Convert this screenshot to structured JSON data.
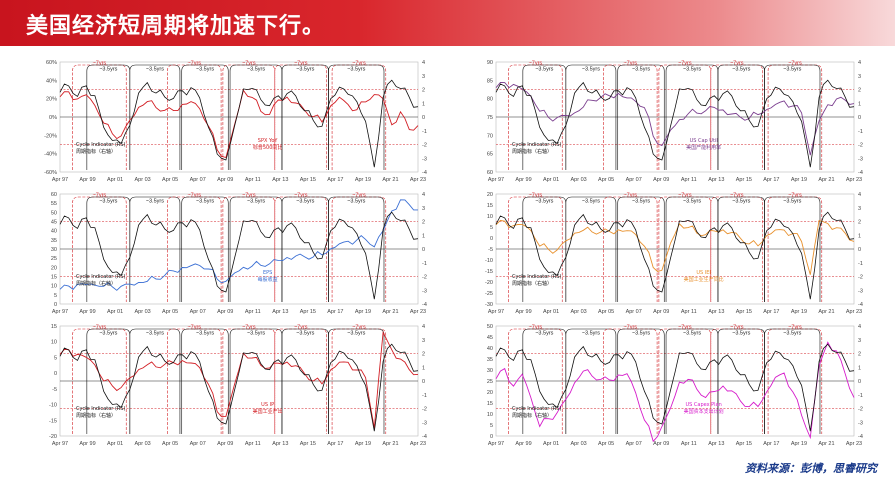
{
  "header": {
    "title": "美国经济短周期将加速下行。"
  },
  "footer": {
    "source": "资料来源：彭博，思睿研究"
  },
  "colors": {
    "cycle_line": "#111111",
    "cycle_band": "#d21e24",
    "bracket_black": "#111111",
    "bracket_red": "#d21e24"
  },
  "period_labels": {
    "black": "~3.5yrs",
    "red": "~7yrs"
  },
  "cycle_indicator": {
    "label_en": "Cycle Indicator (RS)",
    "label_cn": "周期指标（右轴）"
  },
  "chart_data": [
    {
      "type": "line",
      "panel": "top-left",
      "x_ticks": [
        "Apr 97",
        "Apr 99",
        "Apr 01",
        "Apr 03",
        "Apr 05",
        "Apr 07",
        "Apr 09",
        "Apr 11",
        "Apr 13",
        "Apr 15",
        "Apr 17",
        "Apr 19",
        "Apr 21",
        "Apr 23"
      ],
      "y_left_ticks": [
        "60%",
        "40%",
        "20%",
        "0%",
        "-20%",
        "-40%",
        "-60%"
      ],
      "y_left_range": [
        -60,
        60
      ],
      "y_right_ticks": [
        "4",
        "3",
        "2",
        "1",
        "0",
        "-1",
        "-2",
        "-3",
        "-4"
      ],
      "y_right_range": [
        -4,
        4
      ],
      "series": [
        {
          "name": "SPX YoY",
          "name_cn": "标普500同比",
          "color": "#d21e24",
          "axis": "left",
          "values": [
            22,
            26,
            18,
            24,
            14,
            -5,
            -18,
            -22,
            -5,
            10,
            18,
            12,
            8,
            6,
            12,
            16,
            10,
            -8,
            -35,
            -45,
            -10,
            28,
            22,
            8,
            4,
            18,
            20,
            14,
            8,
            2,
            -4,
            12,
            20,
            12,
            8,
            18,
            26,
            20,
            -10,
            4,
            -14,
            -8
          ]
        },
        {
          "name": "Cycle Indicator (RS)",
          "color": "#111111",
          "axis": "right",
          "values": [
            1.8,
            2.4,
            1.6,
            2.2,
            1.4,
            -0.8,
            -1.6,
            -1.8,
            -0.6,
            1.6,
            2.4,
            1.8,
            1.6,
            1.4,
            1.8,
            2.0,
            1.4,
            -0.6,
            -2.6,
            -3.2,
            -0.8,
            2.0,
            2.2,
            1.4,
            0.8,
            1.4,
            1.6,
            1.6,
            0.6,
            -0.2,
            -0.8,
            1.2,
            2.2,
            1.8,
            1.2,
            -0.4,
            -3.8,
            1.4,
            2.8,
            2.2,
            1.4,
            0.6
          ]
        }
      ]
    },
    {
      "type": "line",
      "panel": "top-right",
      "x_ticks": [
        "Apr 97",
        "Apr 99",
        "Apr 01",
        "Apr 03",
        "Apr 05",
        "Apr 07",
        "Apr 09",
        "Apr 11",
        "Apr 13",
        "Apr 15",
        "Apr 17",
        "Apr 19",
        "Apr 21",
        "Apr 23"
      ],
      "y_left_ticks": [
        "90",
        "85",
        "80",
        "75",
        "70",
        "65",
        "60"
      ],
      "y_left_range": [
        60,
        90
      ],
      "y_right_ticks": [
        "4",
        "3",
        "2",
        "1",
        "0",
        "-1",
        "-2",
        "-3",
        "-4"
      ],
      "y_right_range": [
        -4,
        4
      ],
      "series": [
        {
          "name": "US Cap Util",
          "name_cn": "美国产能利用率",
          "color": "#7b3f8f",
          "axis": "left",
          "values": [
            83,
            84,
            83.5,
            82.5,
            81,
            77,
            75,
            74.5,
            75,
            76,
            78,
            80,
            80.5,
            80.5,
            81,
            80,
            79.5,
            78,
            70,
            67,
            71,
            74,
            76,
            76.5,
            77,
            77.5,
            76.5,
            75.5,
            75,
            75,
            76,
            77,
            78,
            79,
            78,
            76.5,
            65,
            74,
            78,
            79.5,
            79.5,
            79
          ]
        },
        {
          "name": "Cycle Indicator (RS)",
          "color": "#111111",
          "axis": "right",
          "values": [
            1.8,
            2.4,
            1.6,
            2.2,
            1.4,
            -0.8,
            -1.6,
            -1.8,
            -0.6,
            1.6,
            2.4,
            1.8,
            1.6,
            1.4,
            1.8,
            2.0,
            1.4,
            -0.6,
            -2.6,
            -3.2,
            -0.8,
            2.0,
            2.2,
            1.4,
            0.8,
            1.4,
            1.6,
            1.6,
            0.6,
            -0.2,
            -0.8,
            1.2,
            2.2,
            1.8,
            1.2,
            -0.4,
            -3.8,
            1.4,
            2.8,
            2.2,
            1.4,
            0.6
          ]
        }
      ]
    },
    {
      "type": "line",
      "panel": "middle-left",
      "x_ticks": [
        "Apr 97",
        "Apr 99",
        "Apr 01",
        "Apr 03",
        "Apr 05",
        "Apr 07",
        "Apr 09",
        "Apr 11",
        "Apr 13",
        "Apr 15",
        "Apr 17",
        "Apr 19",
        "Apr 21",
        "Apr 23"
      ],
      "y_left_ticks": [
        "60",
        "55",
        "50",
        "45",
        "40",
        "35",
        "30",
        "25",
        "20",
        "15",
        "10",
        "5",
        "0"
      ],
      "y_left_range": [
        0,
        60
      ],
      "y_right_ticks": [
        "4",
        "3",
        "2",
        "1",
        "0",
        "-1",
        "-2",
        "-3",
        "-4"
      ],
      "y_right_range": [
        -4,
        4
      ],
      "series": [
        {
          "name": "EPS",
          "name_cn": "每股收益",
          "color": "#3b6fd4",
          "axis": "left",
          "values": [
            8,
            9,
            10,
            10.5,
            11,
            10.5,
            9.5,
            9,
            10,
            11.5,
            13,
            14.5,
            16,
            17.5,
            19,
            20.5,
            21.5,
            20,
            14,
            12,
            16,
            19.5,
            21,
            22,
            22.5,
            23.5,
            24.5,
            25.5,
            26,
            26.5,
            27.5,
            30,
            32,
            33.5,
            35,
            36,
            32,
            40,
            50,
            56,
            54,
            52
          ]
        },
        {
          "name": "Cycle Indicator (RS)",
          "color": "#111111",
          "axis": "right",
          "values": [
            1.8,
            2.4,
            1.6,
            2.2,
            1.4,
            -0.8,
            -1.6,
            -1.8,
            -0.6,
            1.6,
            2.4,
            1.8,
            1.6,
            1.4,
            1.8,
            2.0,
            1.4,
            -0.6,
            -2.6,
            -3.2,
            -0.8,
            2.0,
            2.2,
            1.4,
            0.8,
            1.4,
            1.6,
            1.6,
            0.6,
            -0.2,
            -0.8,
            1.2,
            2.2,
            1.8,
            1.2,
            -0.4,
            -3.8,
            1.4,
            2.8,
            2.2,
            1.4,
            0.6
          ]
        }
      ]
    },
    {
      "type": "line",
      "panel": "middle-right",
      "x_ticks": [
        "Apr 97",
        "Apr 99",
        "Apr 01",
        "Apr 03",
        "Apr 05",
        "Apr 07",
        "Apr 09",
        "Apr 11",
        "Apr 13",
        "Apr 15",
        "Apr 17",
        "Apr 19",
        "Apr 21",
        "Apr 23"
      ],
      "y_left_ticks": [
        "20",
        "15",
        "10",
        "5",
        "0",
        "-5",
        "-10",
        "-15",
        "-20",
        "-25",
        "-30"
      ],
      "y_left_range": [
        -30,
        20
      ],
      "y_right_ticks": [
        "4",
        "3",
        "2",
        "1",
        "0",
        "-1",
        "-2",
        "-3",
        "-4"
      ],
      "y_right_range": [
        -4,
        4
      ],
      "series": [
        {
          "name": "US IEI",
          "name_cn": "美国工业生产同比",
          "color": "#e8912e",
          "axis": "left",
          "values": [
            6,
            7,
            5,
            6,
            4,
            -3,
            -5,
            -6,
            -2,
            2,
            4,
            3.5,
            3,
            2.5,
            3,
            3,
            2,
            -3,
            -13,
            -15,
            -3,
            6,
            5,
            3,
            2,
            3,
            3,
            2,
            0,
            -2,
            -3,
            1,
            3,
            3,
            2,
            -1,
            -16,
            8,
            6,
            4,
            2,
            -1
          ]
        },
        {
          "name": "Cycle Indicator (RS)",
          "color": "#111111",
          "axis": "right",
          "values": [
            1.8,
            2.4,
            1.6,
            2.2,
            1.4,
            -0.8,
            -1.6,
            -1.8,
            -0.6,
            1.6,
            2.4,
            1.8,
            1.6,
            1.4,
            1.8,
            2.0,
            1.4,
            -0.6,
            -2.6,
            -3.2,
            -0.8,
            2.0,
            2.2,
            1.4,
            0.8,
            1.4,
            1.6,
            1.6,
            0.6,
            -0.2,
            -0.8,
            1.2,
            2.2,
            1.8,
            1.2,
            -0.4,
            -3.8,
            1.4,
            2.8,
            2.2,
            1.4,
            0.6
          ]
        }
      ]
    },
    {
      "type": "line",
      "panel": "bottom-left",
      "x_ticks": [
        "Apr 97",
        "Apr 99",
        "Apr 01",
        "Apr 03",
        "Apr 05",
        "Apr 07",
        "Apr 09",
        "Apr 11",
        "Apr 13",
        "Apr 15",
        "Apr 17",
        "Apr 19",
        "Apr 21",
        "Apr 23"
      ],
      "y_left_ticks": [
        "15",
        "10",
        "5",
        "0",
        "-5",
        "-10",
        "-15",
        "-20"
      ],
      "y_left_range": [
        -20,
        15
      ],
      "y_right_ticks": [
        "4",
        "3",
        "2",
        "1",
        "0",
        "-1",
        "-2",
        "-3",
        "-4"
      ],
      "y_right_range": [
        -4,
        4
      ],
      "series": [
        {
          "name": "US IP",
          "name_cn": "美国工业产出",
          "color": "#d21e24",
          "axis": "left",
          "values": [
            6,
            7,
            5.5,
            5,
            3,
            -2,
            -4,
            -5,
            -2,
            1,
            3,
            2.5,
            3,
            3,
            3.5,
            3,
            2,
            -3,
            -12,
            -14,
            -4,
            6,
            5,
            3,
            2,
            3,
            3,
            2,
            0,
            -2,
            -3,
            1,
            3,
            3,
            1,
            -1,
            -17,
            13,
            7,
            4,
            1,
            0
          ]
        },
        {
          "name": "Cycle Indicator (RS)",
          "color": "#111111",
          "axis": "right",
          "values": [
            1.8,
            2.4,
            1.6,
            2.2,
            1.4,
            -0.8,
            -1.6,
            -1.8,
            -0.6,
            1.6,
            2.4,
            1.8,
            1.6,
            1.4,
            1.8,
            2.0,
            1.4,
            -0.6,
            -2.6,
            -3.2,
            -0.8,
            2.0,
            2.2,
            1.4,
            0.8,
            1.4,
            1.6,
            1.6,
            0.6,
            -0.2,
            -0.8,
            1.2,
            2.2,
            1.8,
            1.2,
            -0.4,
            -3.8,
            1.4,
            2.8,
            2.2,
            1.4,
            0.6
          ]
        }
      ]
    },
    {
      "type": "line",
      "panel": "bottom-right",
      "x_ticks": [
        "Apr 97",
        "Apr 99",
        "Apr 01",
        "Apr 03",
        "Apr 05",
        "Apr 07",
        "Apr 09",
        "Apr 11",
        "Apr 13",
        "Apr 15",
        "Apr 17",
        "Apr 19",
        "Apr 21",
        "Apr 23"
      ],
      "y_left_ticks": [
        "50",
        "45",
        "40",
        "35",
        "30",
        "25",
        "20",
        "15",
        "10",
        "5",
        "0"
      ],
      "y_left_range": [
        0,
        50
      ],
      "y_right_ticks": [
        "4",
        "3",
        "2",
        "1",
        "0",
        "-1",
        "-2",
        "-3",
        "-4"
      ],
      "y_right_range": [
        -4,
        4
      ],
      "series": [
        {
          "name": "US Capex Plan",
          "name_cn": "美国资本支出计划",
          "color": "#d61ccb",
          "axis": "left",
          "values": [
            26,
            30,
            22,
            28,
            18,
            5,
            8,
            10,
            16,
            24,
            30,
            28,
            26,
            25,
            27,
            28,
            20,
            8,
            -2,
            4,
            12,
            24,
            26,
            22,
            18,
            20,
            22,
            20,
            16,
            14,
            14,
            20,
            26,
            28,
            20,
            10,
            0,
            32,
            42,
            38,
            28,
            18
          ]
        },
        {
          "name": "Cycle Indicator (RS)",
          "color": "#111111",
          "axis": "right",
          "values": [
            1.8,
            2.4,
            1.6,
            2.2,
            1.4,
            -0.8,
            -1.6,
            -1.8,
            -0.6,
            1.6,
            2.4,
            1.8,
            1.6,
            1.4,
            1.8,
            2.0,
            1.4,
            -0.6,
            -2.6,
            -3.2,
            -0.8,
            2.0,
            2.2,
            1.4,
            0.8,
            1.4,
            1.6,
            1.6,
            0.6,
            -0.2,
            -0.8,
            1.2,
            2.2,
            1.8,
            1.2,
            -0.4,
            -3.8,
            1.4,
            2.8,
            2.2,
            1.4,
            0.6
          ]
        }
      ]
    }
  ]
}
